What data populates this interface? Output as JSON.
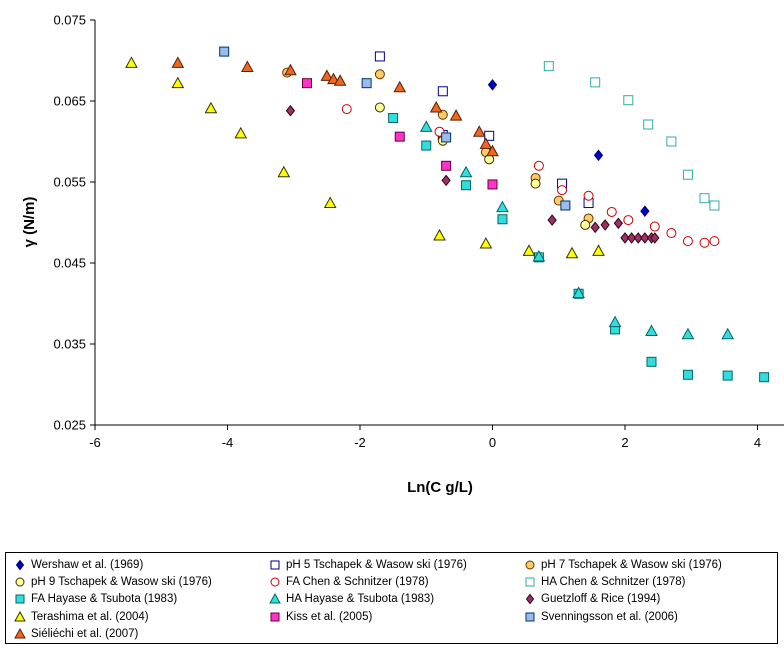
{
  "chart_data": {
    "type": "scatter",
    "title": "",
    "xlabel": "Ln(C g/L)",
    "ylabel": "γ (N/m)",
    "xlim": [
      -6,
      4.4
    ],
    "ylim": [
      0.025,
      0.075
    ],
    "x_ticks": [
      "-6",
      "-4",
      "-2",
      "0",
      "2",
      "4"
    ],
    "y_ticks": [
      "0.025",
      "0.035",
      "0.045",
      "0.055",
      "0.065",
      "0.075"
    ],
    "grid": false,
    "legend_position": "bottom",
    "series": [
      {
        "name": "Wershaw  et al. (1969)",
        "marker": "diamond",
        "fill": "#0000cc",
        "stroke": "#000066",
        "x": [
          0.0,
          1.6,
          2.3
        ],
        "y": [
          0.067,
          0.0583,
          0.0514
        ]
      },
      {
        "name": "pH 5 Tschapek & Wasow ski (1976)",
        "marker": "square",
        "fill": "#ffffff",
        "stroke": "#000080",
        "x": [
          -1.7,
          -0.75,
          -0.75,
          -0.05,
          1.05,
          1.45
        ],
        "y": [
          0.0705,
          0.0662,
          0.0608,
          0.0607,
          0.0548,
          0.0524
        ]
      },
      {
        "name": "pH 7 Tschapek & Wasow ski (1976)",
        "marker": "circle",
        "fill": "#ffcc66",
        "stroke": "#663300",
        "x": [
          -3.1,
          -1.7,
          -0.75,
          -0.75,
          -0.1,
          0.65,
          1.0,
          1.45
        ],
        "y": [
          0.0685,
          0.0683,
          0.0633,
          0.0603,
          0.0587,
          0.0555,
          0.0527,
          0.0505
        ]
      },
      {
        "name": "pH 9 Tschapek & Wasow ski (1976)",
        "marker": "circle",
        "fill": "#ffff99",
        "stroke": "#333300",
        "x": [
          -1.7,
          -0.75,
          -0.05,
          0.65,
          1.4
        ],
        "y": [
          0.0642,
          0.0601,
          0.0578,
          0.0548,
          0.0497
        ]
      },
      {
        "name": "FA Chen & Schnitzer (1978)",
        "marker": "circle",
        "fill": "#ffffff",
        "stroke": "#cc0000",
        "x": [
          -2.2,
          -0.8,
          0.7,
          1.05,
          1.45,
          1.8,
          2.05,
          2.45,
          2.7,
          2.95,
          3.2,
          3.35
        ],
        "y": [
          0.064,
          0.0612,
          0.057,
          0.054,
          0.0533,
          0.0513,
          0.0503,
          0.0495,
          0.0487,
          0.0477,
          0.0475,
          0.0477
        ]
      },
      {
        "name": "HA Chen & Schnitzer (1978)",
        "marker": "square",
        "fill": "#ffffff",
        "stroke": "#33aaaa",
        "x": [
          0.85,
          1.55,
          2.05,
          2.35,
          2.7,
          2.95,
          3.2,
          3.35
        ],
        "y": [
          0.0693,
          0.0673,
          0.0651,
          0.0621,
          0.06,
          0.0559,
          0.053,
          0.0521
        ]
      },
      {
        "name": "FA Hayase & Tsubota (1983)",
        "marker": "square",
        "fill": "#33dddd",
        "stroke": "#006666",
        "x": [
          -1.5,
          -1.0,
          -0.4,
          0.15,
          0.7,
          1.3,
          1.85,
          2.4,
          2.95,
          3.55,
          4.1
        ],
        "y": [
          0.0629,
          0.0595,
          0.0546,
          0.0504,
          0.0457,
          0.0412,
          0.0368,
          0.0328,
          0.0312,
          0.0311,
          0.0309
        ]
      },
      {
        "name": "HA Hayase & Tsubota (1983)",
        "marker": "triangle",
        "fill": "#33dddd",
        "stroke": "#006666",
        "x": [
          -1.0,
          -0.4,
          0.15,
          0.7,
          1.3,
          1.85,
          2.4,
          2.95,
          3.55
        ],
        "y": [
          0.0618,
          0.0562,
          0.0519,
          0.0458,
          0.0413,
          0.0377,
          0.0366,
          0.0362,
          0.0362
        ]
      },
      {
        "name": "Guetzloff & Rice (1994)",
        "marker": "diamond",
        "fill": "#993366",
        "stroke": "#330011",
        "x": [
          -3.05,
          -0.7,
          0.9,
          1.55,
          1.7,
          1.9,
          2.0,
          2.1,
          2.2,
          2.3,
          2.4,
          2.45
        ],
        "y": [
          0.0638,
          0.0552,
          0.0503,
          0.0494,
          0.0497,
          0.0499,
          0.0481,
          0.0481,
          0.0481,
          0.0481,
          0.0481,
          0.0481
        ]
      },
      {
        "name": "Terashima et al. (2004)",
        "marker": "triangle",
        "fill": "#ffff00",
        "stroke": "#333300",
        "x": [
          -5.45,
          -4.75,
          -4.25,
          -3.8,
          -3.15,
          -2.45,
          -0.8,
          -0.1,
          0.55,
          1.2,
          1.6
        ],
        "y": [
          0.0697,
          0.0672,
          0.0641,
          0.061,
          0.0562,
          0.0524,
          0.0484,
          0.0474,
          0.0465,
          0.0462,
          0.0465
        ]
      },
      {
        "name": "Kiss et al. (2005)",
        "marker": "square",
        "fill": "#ff33cc",
        "stroke": "#660033",
        "x": [
          -2.8,
          -1.4,
          -0.7,
          0.0
        ],
        "y": [
          0.0672,
          0.0606,
          0.057,
          0.0547
        ]
      },
      {
        "name": "Svenningsson et al. (2006)",
        "marker": "square",
        "fill": "#99bbee",
        "stroke": "#003366",
        "x": [
          -4.05,
          -1.9,
          -0.7,
          1.1
        ],
        "y": [
          0.0711,
          0.0672,
          0.0605,
          0.0521
        ]
      },
      {
        "name": "Siéliéchi et al. (2007)",
        "marker": "triangle",
        "fill": "#ee6622",
        "stroke": "#552200",
        "x": [
          -4.75,
          -3.7,
          -3.05,
          -2.5,
          -2.4,
          -2.3,
          -1.4,
          -0.85,
          -0.55,
          -0.2,
          -0.1,
          0.0
        ],
        "y": [
          0.0697,
          0.0692,
          0.0688,
          0.0681,
          0.0677,
          0.0675,
          0.0667,
          0.0642,
          0.0632,
          0.0612,
          0.0597,
          0.0588
        ]
      }
    ]
  }
}
